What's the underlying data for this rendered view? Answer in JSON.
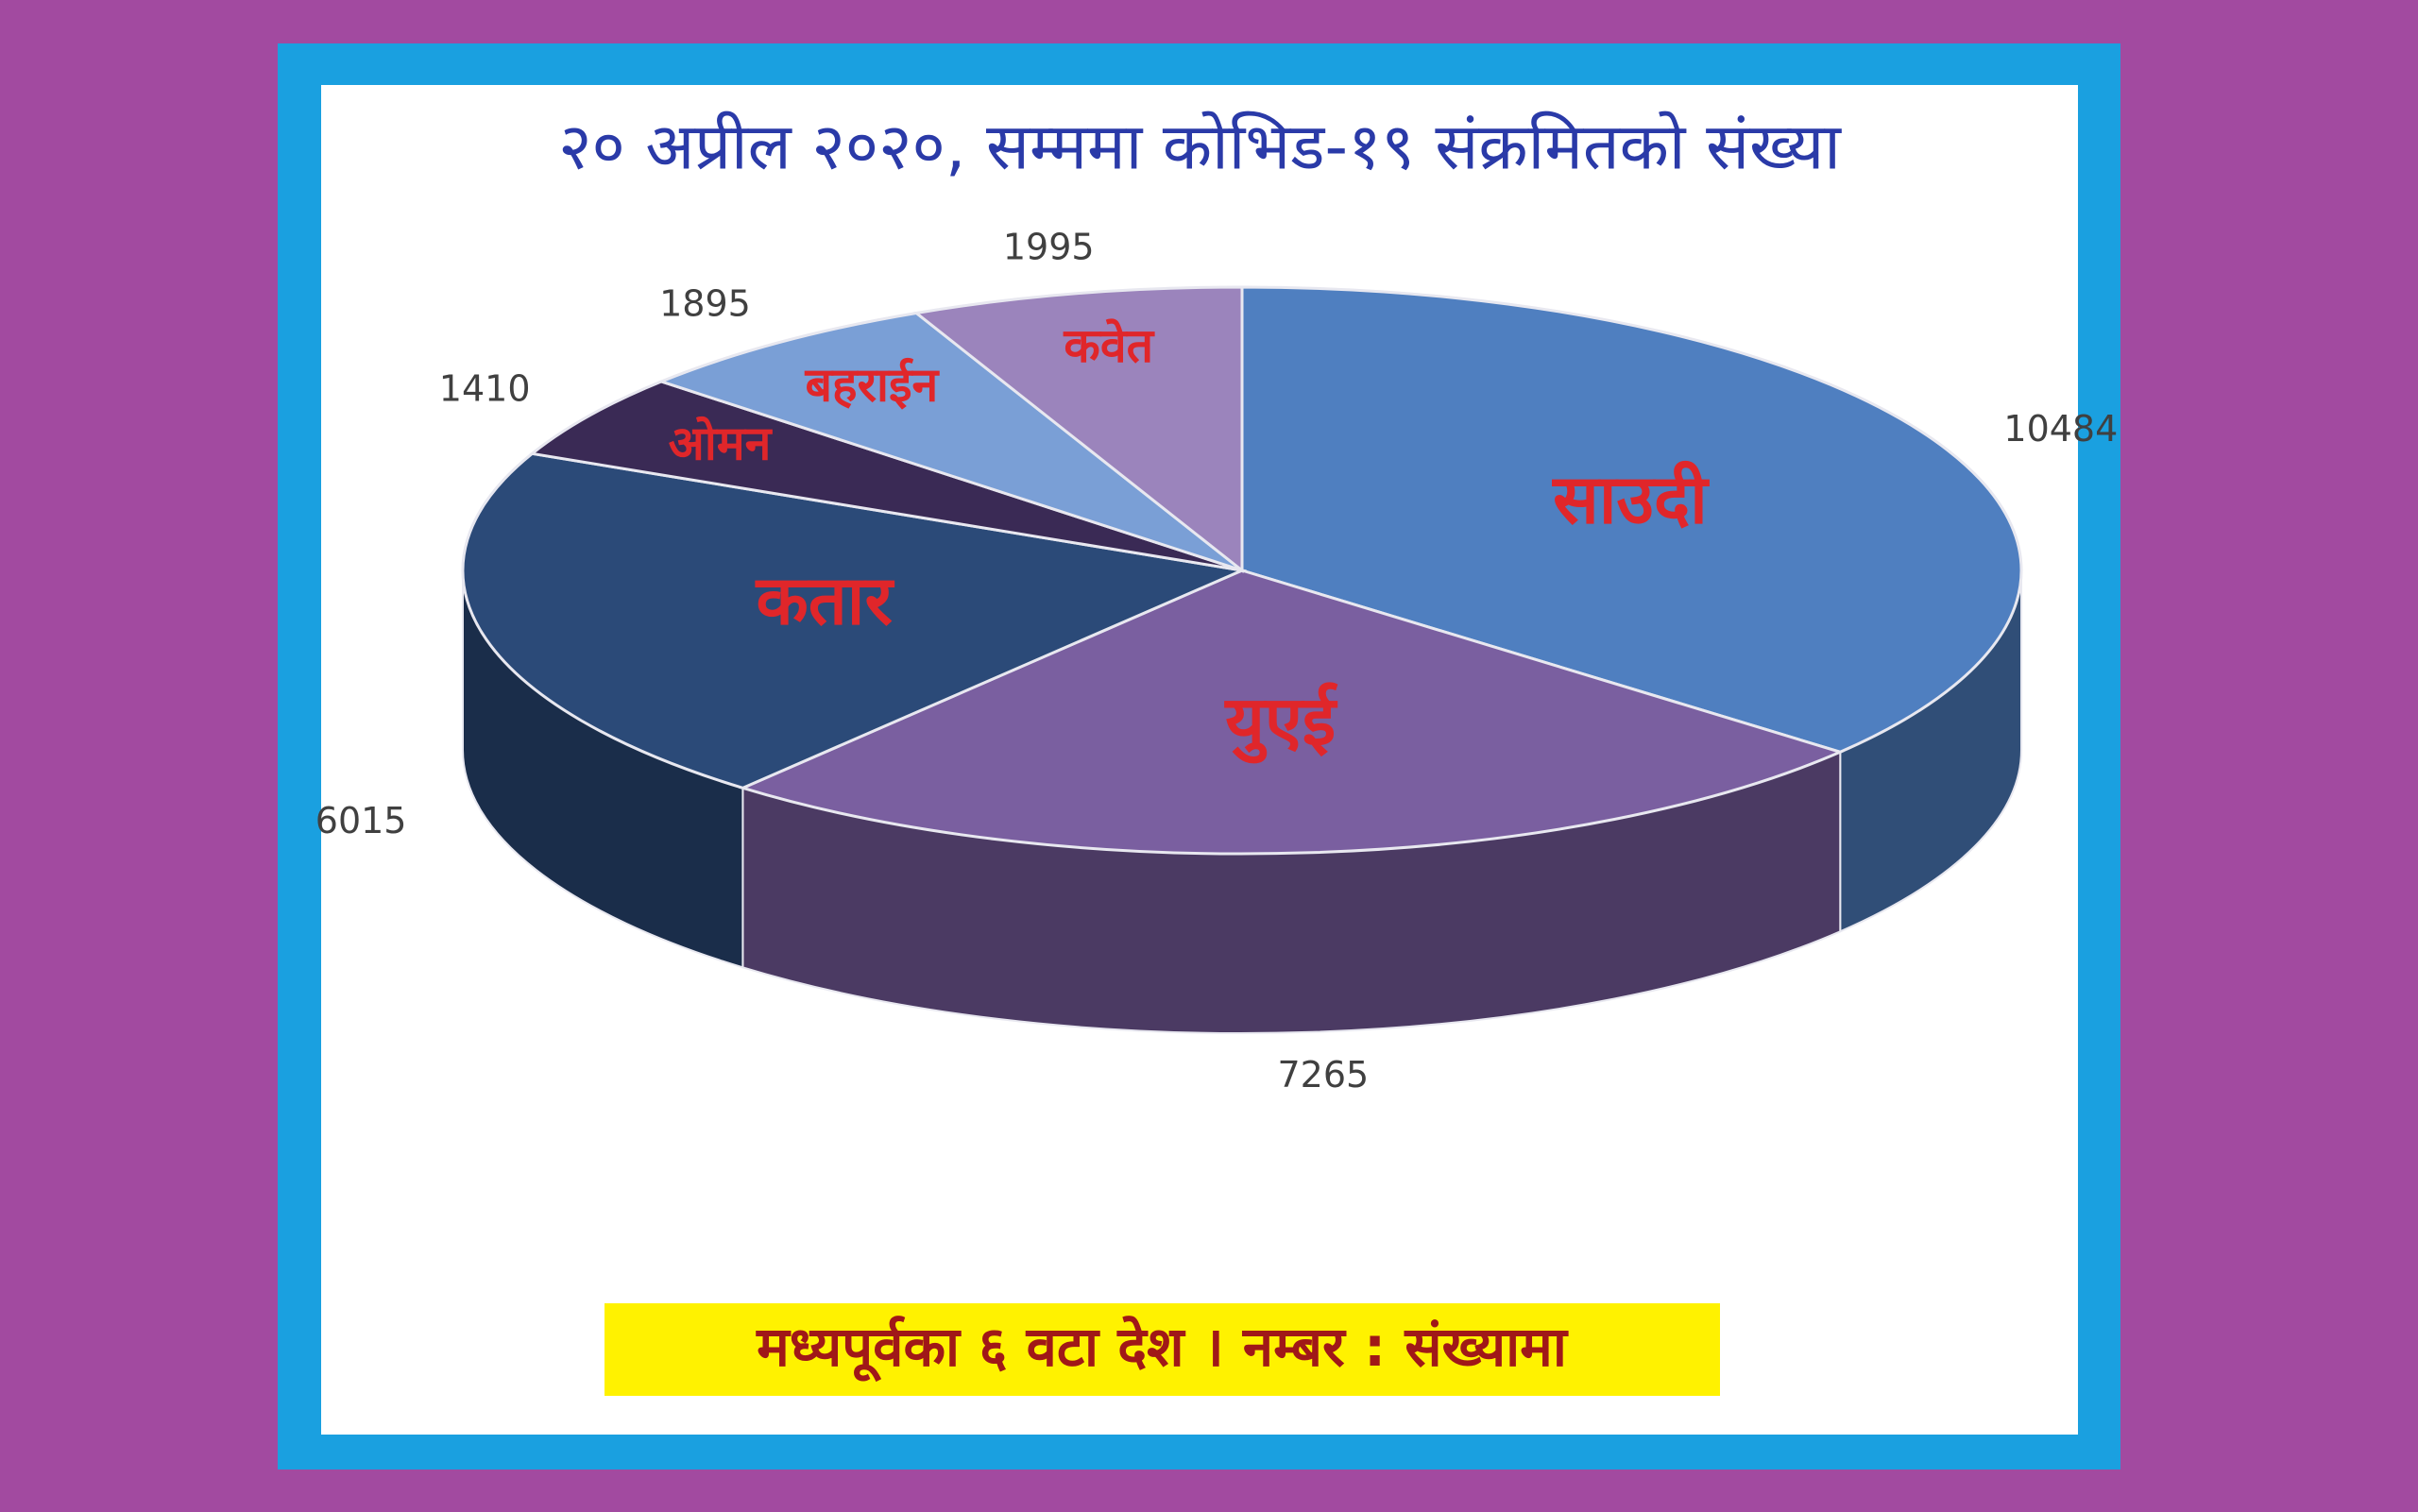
{
  "chart_data": {
    "type": "pie",
    "title": "२० अप्रील २०२०, सम्ममा कोभिड-१९ संक्रमितको संख्या",
    "subtitle": "मध्यपूर्वका ६ वटा देश । नम्बर : संख्यामा",
    "categories": [
      "साउदी",
      "युएई",
      "कतार",
      "ओमन",
      "बहराईन",
      "कवेत"
    ],
    "values": [
      10484,
      7265,
      6015,
      1410,
      1895,
      1995
    ],
    "colors": [
      "#4f7fc0",
      "#7a5fa0",
      "#2b4a78",
      "#3a2a55",
      "#7a9fd6",
      "#9b84bc"
    ]
  }
}
